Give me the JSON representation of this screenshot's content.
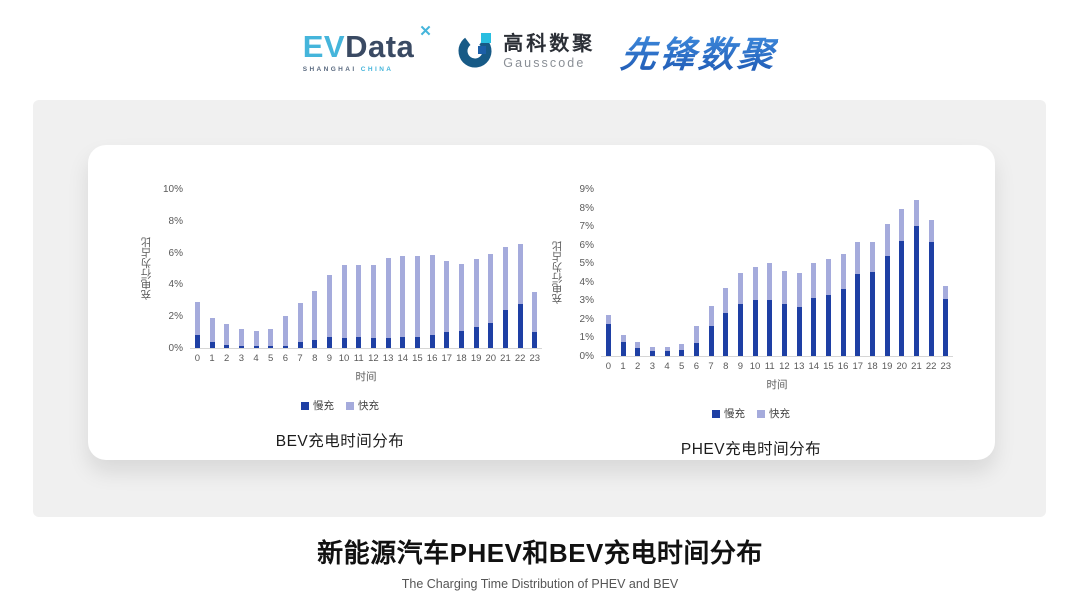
{
  "header": {
    "evdata": {
      "ev": "EV",
      "data": "Data",
      "mark": "✕",
      "sub_left": "SHANGHAI",
      "sub_right": "CHINA"
    },
    "gausscode": {
      "cn": "高科数聚",
      "en": "Gausscode"
    },
    "xianfeng": {
      "text": "先锋数聚"
    }
  },
  "colors": {
    "slow": "#1E3FA4",
    "fast": "#A5ABDC",
    "cyan": "#45B5DB",
    "navy": "#3A4A63",
    "gauss_ring": "#175A86",
    "gauss_cyan": "#29BEE0",
    "gauss_inner": "#1C5FA8"
  },
  "chart_data": [
    {
      "type": "bar",
      "stacked": true,
      "title": "BEV充电时间分布",
      "xlabel": "时间",
      "ylabel": "充电行为占比",
      "categories": [
        "0",
        "1",
        "2",
        "3",
        "4",
        "5",
        "6",
        "7",
        "8",
        "9",
        "10",
        "11",
        "12",
        "13",
        "14",
        "15",
        "16",
        "17",
        "18",
        "19",
        "20",
        "21",
        "22",
        "23"
      ],
      "series": [
        {
          "name": "慢充",
          "values": [
            0.8,
            0.35,
            0.2,
            0.1,
            0.1,
            0.1,
            0.15,
            0.35,
            0.5,
            0.7,
            0.65,
            0.7,
            0.6,
            0.6,
            0.7,
            0.7,
            0.85,
            1.0,
            1.1,
            1.3,
            1.6,
            2.4,
            2.75,
            1.0
          ]
        },
        {
          "name": "快充",
          "values": [
            2.1,
            1.55,
            1.3,
            1.1,
            1.0,
            1.1,
            1.85,
            2.45,
            3.1,
            3.9,
            4.55,
            4.55,
            4.65,
            5.05,
            5.1,
            5.1,
            5.0,
            4.5,
            4.2,
            4.3,
            4.3,
            3.95,
            3.8,
            2.55
          ]
        }
      ],
      "ylim": [
        0,
        10
      ],
      "yticks": [
        "0%",
        "2%",
        "4%",
        "6%",
        "8%",
        "10%"
      ],
      "legend": [
        "慢充",
        "快充"
      ],
      "legend_position": "bottom",
      "grid": false
    },
    {
      "type": "bar",
      "stacked": true,
      "title": "PHEV充电时间分布",
      "xlabel": "时间",
      "ylabel": "充电行为占比",
      "categories": [
        "0",
        "1",
        "2",
        "3",
        "4",
        "5",
        "6",
        "7",
        "8",
        "9",
        "10",
        "11",
        "12",
        "13",
        "14",
        "15",
        "16",
        "17",
        "18",
        "19",
        "20",
        "21",
        "22",
        "23"
      ],
      "series": [
        {
          "name": "慢充",
          "values": [
            1.75,
            0.75,
            0.45,
            0.25,
            0.25,
            0.3,
            0.7,
            1.6,
            2.3,
            2.8,
            3.0,
            3.0,
            2.8,
            2.65,
            3.1,
            3.3,
            3.6,
            4.4,
            4.55,
            5.4,
            6.2,
            7.0,
            6.15,
            3.05
          ]
        },
        {
          "name": "快充",
          "values": [
            0.45,
            0.4,
            0.3,
            0.25,
            0.25,
            0.35,
            0.9,
            1.1,
            1.35,
            1.7,
            1.8,
            2.0,
            1.8,
            1.8,
            1.9,
            1.95,
            1.9,
            1.75,
            1.6,
            1.7,
            1.7,
            1.4,
            1.2,
            0.75
          ]
        }
      ],
      "ylim": [
        0,
        9
      ],
      "yticks": [
        "0%",
        "1%",
        "2%",
        "3%",
        "4%",
        "5%",
        "6%",
        "7%",
        "8%",
        "9%"
      ],
      "legend": [
        "慢充",
        "快充"
      ],
      "legend_position": "bottom",
      "grid": false
    }
  ],
  "footer": {
    "title": "新能源汽车PHEV和BEV充电时间分布",
    "subtitle": "The Charging Time Distribution of PHEV and BEV"
  }
}
